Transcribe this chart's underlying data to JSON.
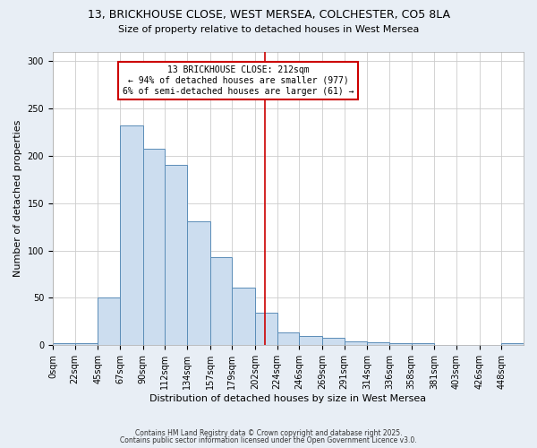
{
  "title1": "13, BRICKHOUSE CLOSE, WEST MERSEA, COLCHESTER, CO5 8LA",
  "title2": "Size of property relative to detached houses in West Mersea",
  "xlabel": "Distribution of detached houses by size in West Mersea",
  "ylabel": "Number of detached properties",
  "bin_labels": [
    "0sqm",
    "22sqm",
    "45sqm",
    "67sqm",
    "90sqm",
    "112sqm",
    "134sqm",
    "157sqm",
    "179sqm",
    "202sqm",
    "224sqm",
    "246sqm",
    "269sqm",
    "291sqm",
    "314sqm",
    "336sqm",
    "358sqm",
    "381sqm",
    "403sqm",
    "426sqm",
    "448sqm"
  ],
  "bin_edges": [
    0,
    22,
    45,
    67,
    90,
    112,
    134,
    157,
    179,
    202,
    224,
    246,
    269,
    291,
    314,
    336,
    358,
    381,
    403,
    426,
    448,
    470
  ],
  "bar_heights": [
    2,
    2,
    50,
    232,
    207,
    190,
    131,
    93,
    61,
    34,
    14,
    10,
    8,
    4,
    3,
    2,
    2,
    0,
    0,
    0,
    2
  ],
  "bar_color": "#ccddef",
  "bar_edge_color": "#5b8db8",
  "property_size": 212,
  "red_line_color": "#cc0000",
  "annotation_line1": "13 BRICKHOUSE CLOSE: 212sqm",
  "annotation_line2": "← 94% of detached houses are smaller (977)",
  "annotation_line3": "6% of semi-detached houses are larger (61) →",
  "annotation_box_edge_color": "#cc0000",
  "footer1": "Contains HM Land Registry data © Crown copyright and database right 2025.",
  "footer2": "Contains public sector information licensed under the Open Government Licence v3.0.",
  "bg_color": "#e8eef5",
  "plot_bg_color": "#ffffff",
  "ylim": [
    0,
    310
  ],
  "yticks": [
    0,
    50,
    100,
    150,
    200,
    250,
    300
  ],
  "title1_fontsize": 9,
  "title2_fontsize": 8,
  "xlabel_fontsize": 8,
  "ylabel_fontsize": 8,
  "tick_fontsize": 7,
  "footer_fontsize": 5.5
}
